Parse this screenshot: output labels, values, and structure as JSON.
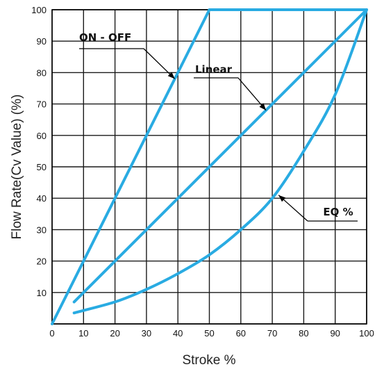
{
  "chart_data": {
    "type": "line",
    "title": "",
    "xlabel": "Stroke %",
    "ylabel": "Flow Rate(Cv Value) (%)",
    "xlim": [
      0,
      100
    ],
    "ylim": [
      0,
      100
    ],
    "x_ticks": [
      "0",
      "10",
      "20",
      "30",
      "40",
      "50",
      "60",
      "70",
      "80",
      "90",
      "100"
    ],
    "y_ticks": [
      "10",
      "20",
      "30",
      "40",
      "50",
      "60",
      "70",
      "80",
      "90",
      "100"
    ],
    "grid": true,
    "line_color": "#29abe2",
    "series": [
      {
        "name": "ON - OFF",
        "x": [
          0,
          50,
          100
        ],
        "y": [
          0,
          100,
          100
        ]
      },
      {
        "name": "Linear",
        "x": [
          7,
          100
        ],
        "y": [
          7,
          100
        ]
      },
      {
        "name": "EQ %",
        "x": [
          7,
          20,
          30,
          40,
          50,
          60,
          70,
          80,
          90,
          100
        ],
        "y": [
          3.5,
          7,
          11,
          16,
          22,
          30,
          40,
          55,
          73,
          100
        ]
      }
    ],
    "annotations": [
      {
        "text": "ON - OFF",
        "series": "ON - OFF",
        "point_x": 39,
        "point_y": 78
      },
      {
        "text": "Linear",
        "series": "Linear",
        "point_x": 68,
        "point_y": 68
      },
      {
        "text": "EQ %",
        "series": "EQ %",
        "point_x": 72,
        "point_y": 41
      }
    ]
  }
}
